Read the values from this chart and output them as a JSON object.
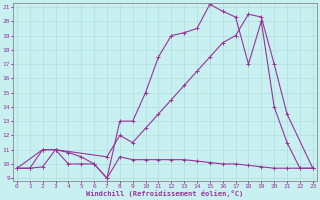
{
  "xlabel": "Windchill (Refroidissement éolien,°C)",
  "bg_color": "#c8f0f0",
  "line_color": "#993399",
  "grid_color": "#b0dede",
  "xmin": 0,
  "xmax": 23,
  "ymin": 9,
  "ymax": 21,
  "curve1_x": [
    0,
    1,
    2,
    3,
    4,
    5,
    6,
    7,
    8,
    9,
    10,
    11,
    12,
    13,
    14,
    15,
    16,
    17,
    18,
    19,
    20,
    21,
    22,
    23
  ],
  "curve1_y": [
    9.7,
    9.7,
    9.8,
    11.0,
    10.8,
    10.5,
    10.0,
    9.0,
    10.5,
    10.3,
    10.3,
    10.3,
    10.3,
    10.3,
    10.2,
    10.1,
    10.0,
    10.0,
    9.9,
    9.8,
    9.7,
    9.7,
    9.7,
    9.7
  ],
  "curve2_x": [
    0,
    1,
    2,
    3,
    4,
    5,
    6,
    7,
    8,
    9,
    10,
    11,
    12,
    13,
    14,
    15,
    16,
    17,
    18,
    19,
    20,
    21,
    22,
    23
  ],
  "curve2_y": [
    9.7,
    9.7,
    11.0,
    11.0,
    10.0,
    10.0,
    10.0,
    9.0,
    13.0,
    13.0,
    15.0,
    17.5,
    19.0,
    19.2,
    19.5,
    21.2,
    20.7,
    20.3,
    17.0,
    20.0,
    14.0,
    11.5,
    9.7,
    9.7
  ],
  "curve3_x": [
    0,
    2,
    3,
    7,
    8,
    9,
    10,
    11,
    12,
    13,
    14,
    15,
    16,
    17,
    18,
    19,
    20,
    21,
    23
  ],
  "curve3_y": [
    9.7,
    11.0,
    11.0,
    10.5,
    12.0,
    11.5,
    12.5,
    13.5,
    14.5,
    15.5,
    16.5,
    17.5,
    18.5,
    19.0,
    20.5,
    20.3,
    17.0,
    13.5,
    9.7
  ]
}
